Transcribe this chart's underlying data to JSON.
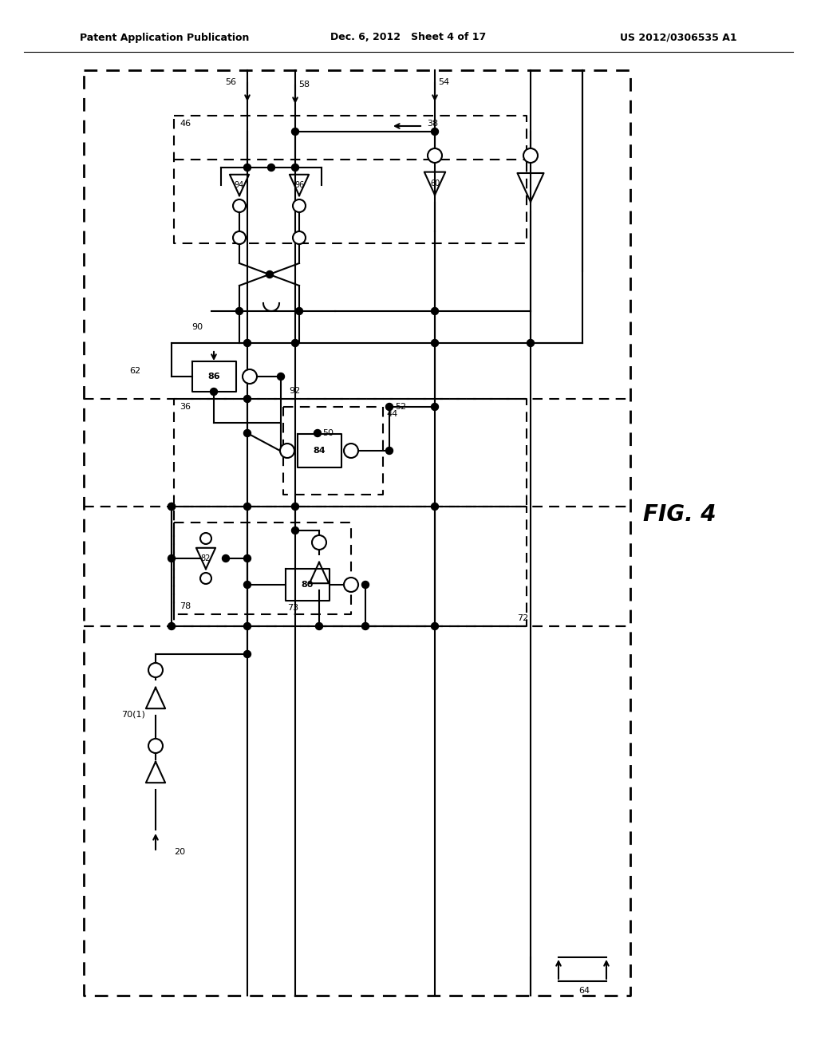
{
  "header_left": "Patent Application Publication",
  "header_center": "Dec. 6, 2012   Sheet 4 of 17",
  "header_right": "US 2012/0306535 A1",
  "fig_label": "FIG. 4",
  "bg_color": "#ffffff"
}
